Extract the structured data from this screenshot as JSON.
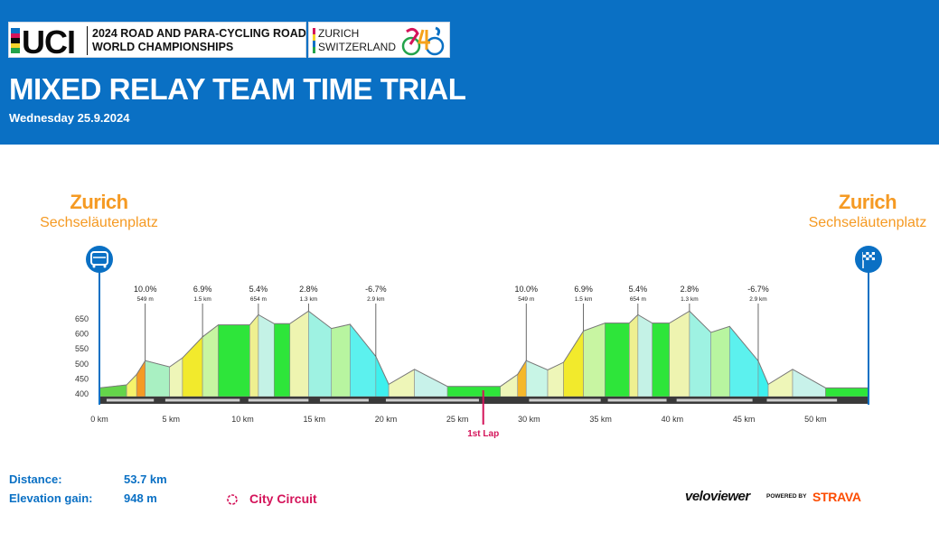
{
  "header": {
    "uci_logo": "UCI",
    "championship_line1": "2024 ROAD AND PARA-CYCLING ROAD",
    "championship_line2": "WORLD CHAMPIONSHIPS",
    "host_line1": "ZURICH",
    "host_line2": "SWITZERLAND",
    "title": "MIXED RELAY TEAM TIME TRIAL",
    "date": "Wednesday 25.9.2024"
  },
  "start": {
    "city": "Zurich",
    "venue": "Sechseläutenplatz",
    "icon": "start-bus-icon"
  },
  "finish": {
    "city": "Zurich",
    "venue": "Sechseläutenplatz",
    "icon": "finish-flag-icon"
  },
  "stats": {
    "distance_label": "Distance:",
    "distance_value": "53.7 km",
    "elevation_label": "Elevation gain:",
    "elevation_value": "948 m"
  },
  "circuit_label": "City Circuit",
  "branding": {
    "veloviewer": "veloviewer",
    "powered_by": "POWERED BY",
    "strava": "STRAVA"
  },
  "colors": {
    "header_bg": "#0a70c4",
    "accent_orange": "#f59a23",
    "marker_blue": "#0a70c4",
    "lap_marker": "#d4145a",
    "strava": "#fc4c02"
  },
  "chart_data": {
    "type": "area",
    "title": "",
    "xlabel": "",
    "ylabel": "",
    "xlim": [
      0,
      53.7
    ],
    "ylim": [
      400,
      650
    ],
    "y_ticks": [
      400,
      450,
      500,
      550,
      600,
      650
    ],
    "x_ticks": [
      "0 km",
      "5 km",
      "10 km",
      "15 km",
      "20 km",
      "25 km",
      "30 km",
      "35 km",
      "40 km",
      "45 km",
      "50 km"
    ],
    "x_tick_values": [
      0,
      5,
      10,
      15,
      20,
      25,
      30,
      35,
      40,
      45,
      50
    ],
    "grid": false,
    "segments": [
      {
        "x0": 0,
        "x1": 1.9,
        "y0": 420,
        "y1": 430,
        "color": "#64d44a"
      },
      {
        "x0": 1.9,
        "x1": 2.6,
        "y0": 430,
        "y1": 465,
        "color": "#f6f36a"
      },
      {
        "x0": 2.6,
        "x1": 3.2,
        "y0": 465,
        "y1": 511,
        "color": "#f59a23"
      },
      {
        "x0": 3.2,
        "x1": 4.9,
        "y0": 511,
        "y1": 490,
        "color": "#a9f0c2"
      },
      {
        "x0": 4.9,
        "x1": 5.8,
        "y0": 490,
        "y1": 520,
        "color": "#eef6b8"
      },
      {
        "x0": 5.8,
        "x1": 7.2,
        "y0": 520,
        "y1": 590,
        "color": "#f2ea2c"
      },
      {
        "x0": 7.2,
        "x1": 8.3,
        "y0": 590,
        "y1": 630,
        "color": "#c8f5a2"
      },
      {
        "x0": 8.3,
        "x1": 10.5,
        "y0": 630,
        "y1": 630,
        "color": "#2ee53a"
      },
      {
        "x0": 10.5,
        "x1": 11.1,
        "y0": 630,
        "y1": 664,
        "color": "#eef090"
      },
      {
        "x0": 11.1,
        "x1": 12.2,
        "y0": 664,
        "y1": 634,
        "color": "#c4f2e6"
      },
      {
        "x0": 12.2,
        "x1": 13.3,
        "y0": 634,
        "y1": 634,
        "color": "#2ee53a"
      },
      {
        "x0": 13.3,
        "x1": 14.6,
        "y0": 634,
        "y1": 676,
        "color": "#eef4b0"
      },
      {
        "x0": 14.6,
        "x1": 16.2,
        "y0": 676,
        "y1": 618,
        "color": "#9ef2e2"
      },
      {
        "x0": 16.2,
        "x1": 17.5,
        "y0": 618,
        "y1": 632,
        "color": "#b8f5a0"
      },
      {
        "x0": 17.5,
        "x1": 19.3,
        "y0": 632,
        "y1": 525,
        "color": "#5cf1ee"
      },
      {
        "x0": 19.3,
        "x1": 20.2,
        "y0": 525,
        "y1": 432,
        "color": "#3ef0ee"
      },
      {
        "x0": 20.2,
        "x1": 22.0,
        "y0": 432,
        "y1": 482,
        "color": "#eef6b8"
      },
      {
        "x0": 22.0,
        "x1": 24.3,
        "y0": 482,
        "y1": 425,
        "color": "#c8f2ea"
      },
      {
        "x0": 24.3,
        "x1": 28.0,
        "y0": 425,
        "y1": 425,
        "color": "#2ee53a"
      },
      {
        "x0": 28.0,
        "x1": 29.2,
        "y0": 425,
        "y1": 465,
        "color": "#eef6b8"
      },
      {
        "x0": 29.2,
        "x1": 29.8,
        "y0": 465,
        "y1": 511,
        "color": "#f5b82a"
      },
      {
        "x0": 29.8,
        "x1": 31.3,
        "y0": 511,
        "y1": 480,
        "color": "#c8f5e6"
      },
      {
        "x0": 31.3,
        "x1": 32.4,
        "y0": 480,
        "y1": 505,
        "color": "#eef6b8"
      },
      {
        "x0": 32.4,
        "x1": 33.8,
        "y0": 505,
        "y1": 610,
        "color": "#f2ea2c"
      },
      {
        "x0": 33.8,
        "x1": 35.3,
        "y0": 610,
        "y1": 636,
        "color": "#c8f5a2"
      },
      {
        "x0": 35.3,
        "x1": 37.0,
        "y0": 636,
        "y1": 636,
        "color": "#2ee53a"
      },
      {
        "x0": 37.0,
        "x1": 37.6,
        "y0": 636,
        "y1": 664,
        "color": "#eef090"
      },
      {
        "x0": 37.6,
        "x1": 38.6,
        "y0": 664,
        "y1": 636,
        "color": "#c4f2e6"
      },
      {
        "x0": 38.6,
        "x1": 39.8,
        "y0": 636,
        "y1": 636,
        "color": "#2ee53a"
      },
      {
        "x0": 39.8,
        "x1": 41.2,
        "y0": 636,
        "y1": 676,
        "color": "#eef4b0"
      },
      {
        "x0": 41.2,
        "x1": 42.7,
        "y0": 676,
        "y1": 605,
        "color": "#9ef2e2"
      },
      {
        "x0": 42.7,
        "x1": 44.0,
        "y0": 605,
        "y1": 625,
        "color": "#b8f5a0"
      },
      {
        "x0": 44.0,
        "x1": 46.0,
        "y0": 625,
        "y1": 510,
        "color": "#5cf1ee"
      },
      {
        "x0": 46.0,
        "x1": 46.7,
        "y0": 510,
        "y1": 432,
        "color": "#3ef0ee"
      },
      {
        "x0": 46.7,
        "x1": 48.4,
        "y0": 432,
        "y1": 482,
        "color": "#eef6b8"
      },
      {
        "x0": 48.4,
        "x1": 50.7,
        "y0": 482,
        "y1": 420,
        "color": "#c8f2ea"
      },
      {
        "x0": 50.7,
        "x1": 53.7,
        "y0": 420,
        "y1": 420,
        "color": "#2ee53a"
      }
    ],
    "climbs": [
      {
        "x": 3.2,
        "grade": "10.0%",
        "length": "549 m"
      },
      {
        "x": 7.2,
        "grade": "6.9%",
        "length": "1.5 km"
      },
      {
        "x": 11.1,
        "grade": "5.4%",
        "length": "654 m"
      },
      {
        "x": 14.6,
        "grade": "2.8%",
        "length": "1.3 km"
      },
      {
        "x": 19.3,
        "grade": "-6.7%",
        "length": "2.9 km"
      },
      {
        "x": 29.8,
        "grade": "10.0%",
        "length": "549 m"
      },
      {
        "x": 33.8,
        "grade": "6.9%",
        "length": "1.5 km"
      },
      {
        "x": 37.6,
        "grade": "5.4%",
        "length": "654 m"
      },
      {
        "x": 41.2,
        "grade": "2.8%",
        "length": "1.3 km"
      },
      {
        "x": 46.0,
        "grade": "-6.7%",
        "length": "2.9 km"
      }
    ],
    "road_bands": [
      [
        0.5,
        3.8
      ],
      [
        4.6,
        9.8
      ],
      [
        10.4,
        14.6
      ],
      [
        15.4,
        18.8
      ],
      [
        20.0,
        26.5
      ],
      [
        30.0,
        35.0
      ],
      [
        35.5,
        39.6
      ],
      [
        40.3,
        45.6
      ],
      [
        46.6,
        51.5
      ]
    ],
    "lap_marker": {
      "x": 26.8,
      "label": "1st Lap"
    }
  }
}
